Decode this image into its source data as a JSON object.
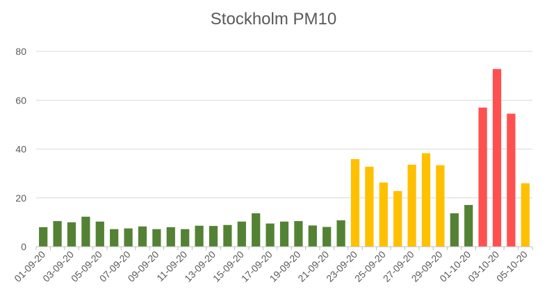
{
  "chart_data": {
    "type": "bar",
    "title": "Stockholm PM10",
    "xlabel": "",
    "ylabel": "",
    "ylim": [
      0,
      80
    ],
    "yticks": [
      0,
      20,
      40,
      60,
      80
    ],
    "grid": true,
    "legend": "none",
    "categories": [
      "01-09-20",
      "02-09-20",
      "03-09-20",
      "04-09-20",
      "05-09-20",
      "06-09-20",
      "07-09-20",
      "08-09-20",
      "09-09-20",
      "10-09-20",
      "11-09-20",
      "12-09-20",
      "13-09-20",
      "14-09-20",
      "15-09-20",
      "16-09-20",
      "17-09-20",
      "18-09-20",
      "19-09-20",
      "20-09-20",
      "21-09-20",
      "22-09-20",
      "23-09-20",
      "24-09-20",
      "25-09-20",
      "26-09-20",
      "27-09-20",
      "28-09-20",
      "29-09-20",
      "30-09-20",
      "01-10-20",
      "02-10-20",
      "03-10-20",
      "04-10-20",
      "05-10-20"
    ],
    "tick_labels": [
      "01-09-20",
      "",
      "03-09-20",
      "",
      "05-09-20",
      "",
      "07-09-20",
      "",
      "09-09-20",
      "",
      "11-09-20",
      "",
      "13-09-20",
      "",
      "15-09-20",
      "",
      "17-09-20",
      "",
      "19-09-20",
      "",
      "21-09-20",
      "",
      "23-09-20",
      "",
      "25-09-20",
      "",
      "27-09-20",
      "",
      "29-09-20",
      "",
      "01-10-20",
      "",
      "03-10-20",
      "",
      "05-10-20"
    ],
    "values": [
      8.0,
      10.5,
      10.0,
      12.3,
      10.3,
      7.2,
      7.5,
      8.3,
      7.2,
      8.0,
      7.2,
      8.6,
      8.5,
      8.9,
      10.3,
      13.7,
      9.5,
      10.3,
      10.5,
      8.7,
      8.1,
      10.8,
      35.9,
      32.8,
      26.3,
      22.8,
      33.6,
      38.3,
      33.4,
      13.7,
      17.1,
      57.0,
      72.8,
      54.5,
      26.0
    ],
    "bar_colors": [
      "#548235",
      "#548235",
      "#548235",
      "#548235",
      "#548235",
      "#548235",
      "#548235",
      "#548235",
      "#548235",
      "#548235",
      "#548235",
      "#548235",
      "#548235",
      "#548235",
      "#548235",
      "#548235",
      "#548235",
      "#548235",
      "#548235",
      "#548235",
      "#548235",
      "#548235",
      "#FFC000",
      "#FFC000",
      "#FFC000",
      "#FFC000",
      "#FFC000",
      "#FFC000",
      "#FFC000",
      "#548235",
      "#548235",
      "#FF5050",
      "#FF5050",
      "#FF5050",
      "#FFC000"
    ],
    "colors": {
      "grid": "#d9d9d9",
      "axis": "#bfbfbf",
      "text": "#595959"
    }
  }
}
